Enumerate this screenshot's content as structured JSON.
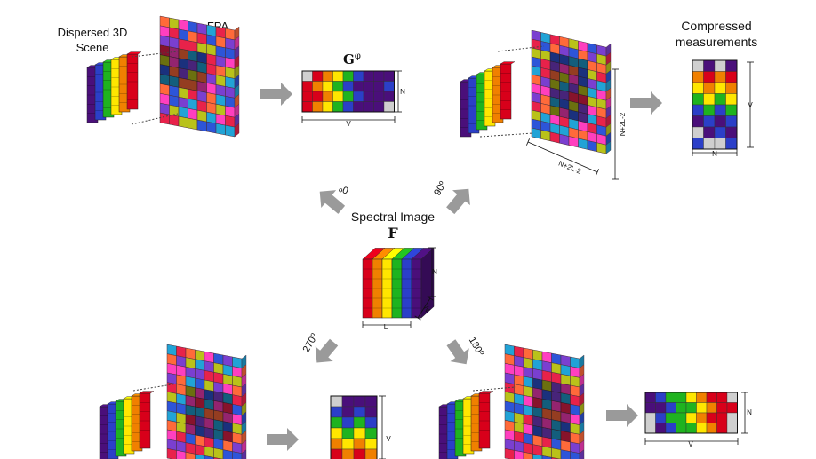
{
  "labels": {
    "scene": [
      "Dispersed 3D",
      "Scene"
    ],
    "fpa": "FPA",
    "g_phi": "G",
    "g_phi_sup": "φ",
    "compressed": [
      "Compressed",
      "measurements"
    ],
    "spectral_image": "Spectral Image",
    "f": "F"
  },
  "angles": {
    "deg0": "0º",
    "deg90": "90º",
    "deg180": "180º",
    "deg270": "270º"
  },
  "dims": {
    "n": "N",
    "v": "V",
    "l": "L",
    "n_plus_2l_minus_2": "N+2L-2"
  },
  "colors": {
    "bands": [
      "#d8001a",
      "#f08000",
      "#ffe600",
      "#1fb31f",
      "#2b3fc8",
      "#4a0f7a"
    ],
    "fpa_cells": [
      "#e8224a",
      "#ff3fbf",
      "#21a3d6",
      "#b9c21a",
      "#7a3fd0",
      "#ff6a3a",
      "#2d55d8"
    ],
    "arrow": "#9a9a9a"
  }
}
